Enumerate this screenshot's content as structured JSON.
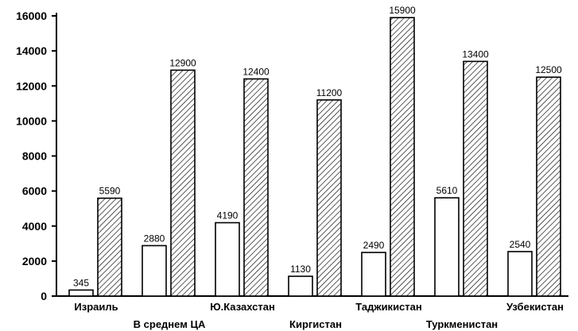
{
  "chart_data": {
    "type": "bar",
    "categories": [
      "Израиль",
      "В среднем ЦА",
      "Ю.Казахстан",
      "Киргистан",
      "Таджикистан",
      "Туркменистан",
      "Узбекистан"
    ],
    "series": [
      {
        "values": [
          345,
          2880,
          4190,
          1130,
          2490,
          5610,
          2540
        ],
        "data_labels": [
          "345",
          "2880",
          "4190",
          "1130",
          "2490",
          "5610",
          "2540"
        ],
        "fill": "#ffffff"
      },
      {
        "values": [
          5590,
          12900,
          12400,
          11200,
          15900,
          13400,
          12500
        ],
        "data_labels": [
          "5590",
          "12900",
          "12400",
          "11200",
          "15900",
          "13400",
          "12500"
        ],
        "fill": "hatched"
      }
    ],
    "y_ticks": [
      "0",
      "2000",
      "4000",
      "6000",
      "8000",
      "10000",
      "12000",
      "14000",
      "16000"
    ],
    "ylim": [
      0,
      16000
    ],
    "grid": false,
    "legend": "none",
    "title": "",
    "xlabel": "",
    "ylabel": ""
  }
}
